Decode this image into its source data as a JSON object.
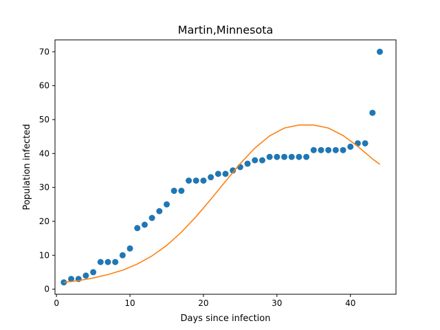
{
  "chart_data": {
    "type": "scatter",
    "title": "Martin,Minnesota",
    "xlabel": "Days since infection",
    "ylabel": "Population infected",
    "xlim": [
      -0.2,
      46.2
    ],
    "ylim": [
      -1.5,
      73.5
    ],
    "xticks": [
      0,
      10,
      20,
      30,
      40
    ],
    "yticks": [
      0,
      10,
      20,
      30,
      40,
      50,
      60,
      70
    ],
    "grid": false,
    "series": [
      {
        "kind": "scatter",
        "color": "#1f77b4",
        "x": [
          1,
          2,
          3,
          4,
          5,
          6,
          7,
          8,
          9,
          10,
          11,
          12,
          13,
          14,
          15,
          16,
          17,
          18,
          19,
          20,
          21,
          22,
          23,
          24,
          25,
          26,
          27,
          28,
          29,
          30,
          31,
          32,
          33,
          34,
          35,
          36,
          37,
          38,
          39,
          40,
          41,
          42,
          43,
          44
        ],
        "y": [
          2,
          3,
          3,
          4,
          5,
          8,
          8,
          8,
          10,
          12,
          18,
          19,
          21,
          23,
          25,
          29,
          29,
          32,
          32,
          32,
          33,
          34,
          34,
          35,
          36,
          37,
          38,
          38,
          39,
          39,
          39,
          39,
          39,
          39,
          41,
          41,
          41,
          41,
          41,
          42,
          43,
          43,
          52,
          70
        ]
      },
      {
        "kind": "line",
        "color": "#ff7f0e",
        "x": [
          1,
          3,
          5,
          7,
          9,
          11,
          13,
          15,
          17,
          19,
          21,
          23,
          25,
          27,
          29,
          31,
          33,
          35,
          37,
          39,
          41,
          43,
          44
        ],
        "y": [
          2.0,
          2.5,
          3.3,
          4.3,
          5.6,
          7.4,
          9.8,
          12.9,
          16.8,
          21.4,
          26.5,
          31.8,
          37.0,
          41.6,
          45.2,
          47.5,
          48.4,
          48.4,
          47.5,
          45.3,
          42.1,
          38.4,
          36.8
        ]
      }
    ]
  }
}
